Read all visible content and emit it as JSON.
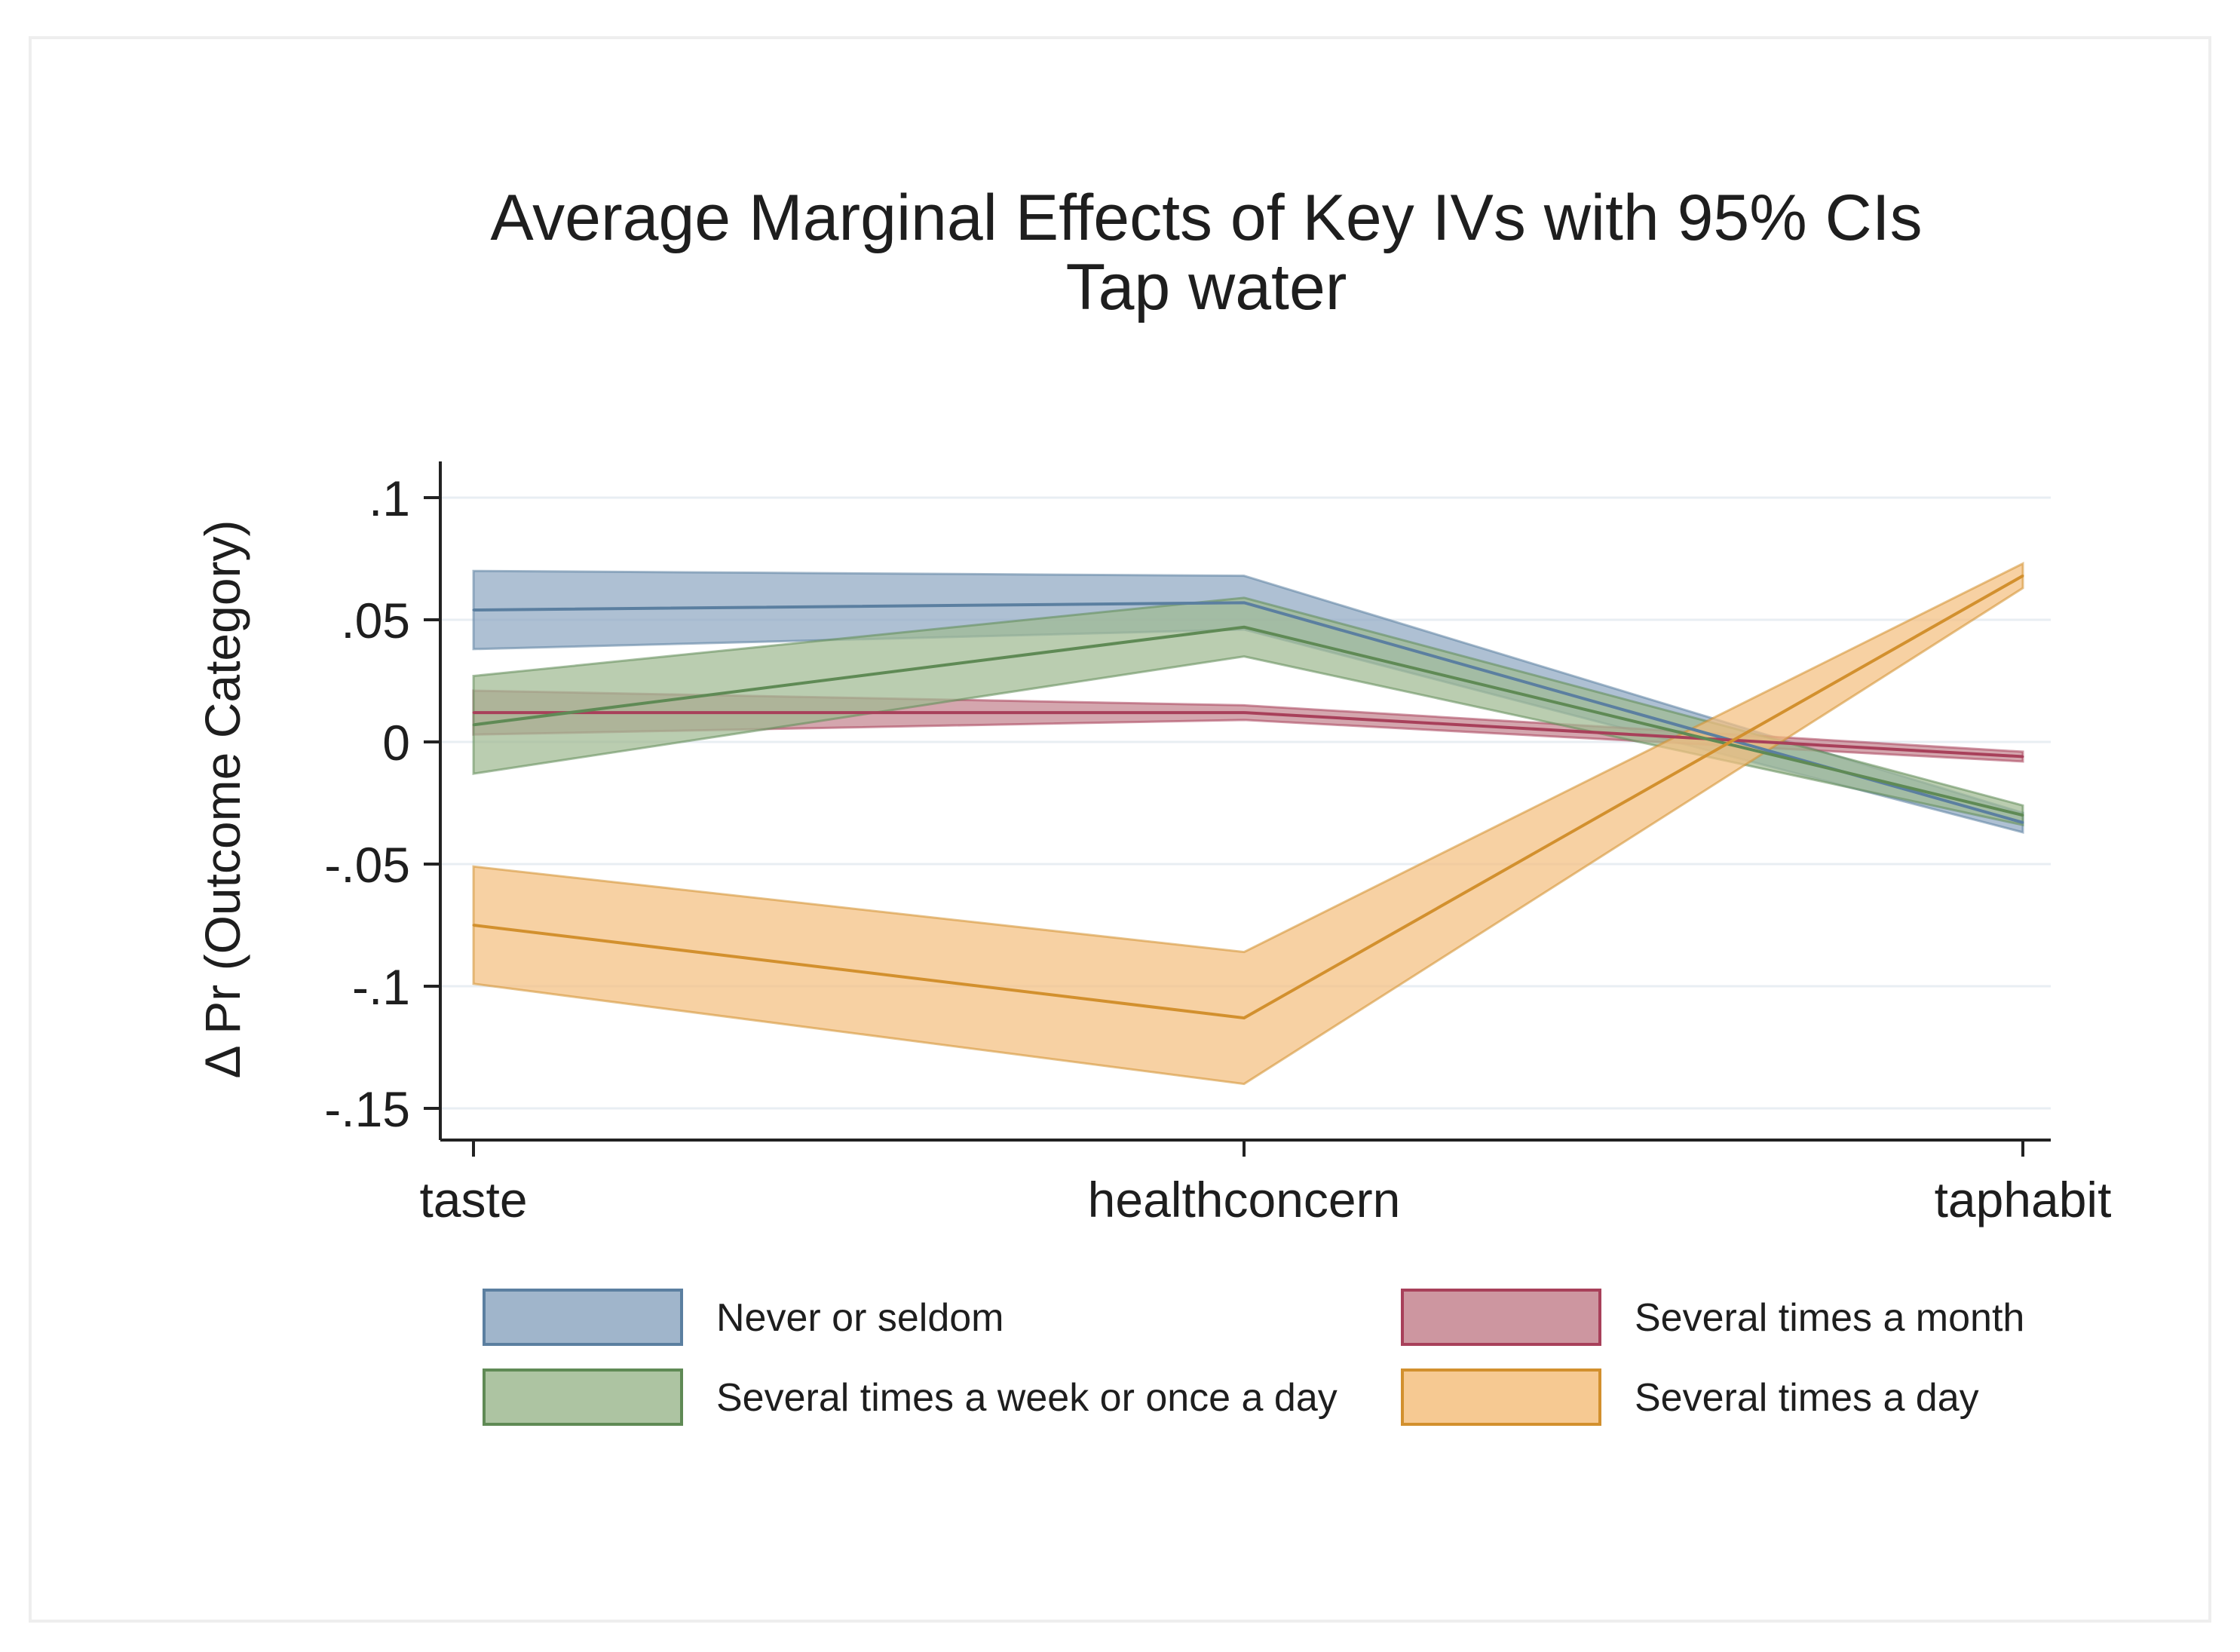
{
  "chart_data": {
    "type": "line",
    "title": "Average Marginal Effects of Key IVs with 95% CIs",
    "subtitle": "Tap water",
    "ylabel": "Δ Pr (Outcome Category)",
    "xlabel": "",
    "categories": [
      "taste",
      "healthconcern",
      "taphabit"
    ],
    "ylim": [
      -0.15,
      0.1
    ],
    "yticks": [
      {
        "value": 0.1,
        "label": ".1"
      },
      {
        "value": 0.05,
        "label": ".05"
      },
      {
        "value": 0,
        "label": "0"
      },
      {
        "value": -0.05,
        "label": "-.05"
      },
      {
        "value": -0.1,
        "label": "-.1"
      },
      {
        "value": -0.15,
        "label": "-.15"
      }
    ],
    "grid": true,
    "legend_position": "bottom",
    "series": [
      {
        "name": "Never or seldom",
        "color": "#5b7fa0",
        "fill": "#8fa8c2",
        "values": [
          0.054,
          0.057,
          -0.033
        ],
        "lower": [
          0.038,
          0.046,
          -0.037
        ],
        "upper": [
          0.07,
          0.068,
          -0.029
        ]
      },
      {
        "name": "Several times a month",
        "color": "#a8405a",
        "fill": "#c4848f",
        "values": [
          0.012,
          0.012,
          -0.006
        ],
        "lower": [
          0.003,
          0.009,
          -0.008
        ],
        "upper": [
          0.021,
          0.015,
          -0.004
        ]
      },
      {
        "name": "Several times a week or once a day",
        "color": "#5f8a55",
        "fill": "#9fba92",
        "values": [
          0.007,
          0.047,
          -0.03
        ],
        "lower": [
          -0.013,
          0.035,
          -0.034
        ],
        "upper": [
          0.027,
          0.059,
          -0.026
        ]
      },
      {
        "name": "Several times a day",
        "color": "#d2902e",
        "fill": "#f4bf7f",
        "values": [
          -0.075,
          -0.113,
          0.068
        ],
        "lower": [
          -0.099,
          -0.14,
          0.063
        ],
        "upper": [
          -0.051,
          -0.086,
          0.073
        ]
      }
    ],
    "legend_order": [
      0,
      1,
      2,
      3
    ]
  }
}
